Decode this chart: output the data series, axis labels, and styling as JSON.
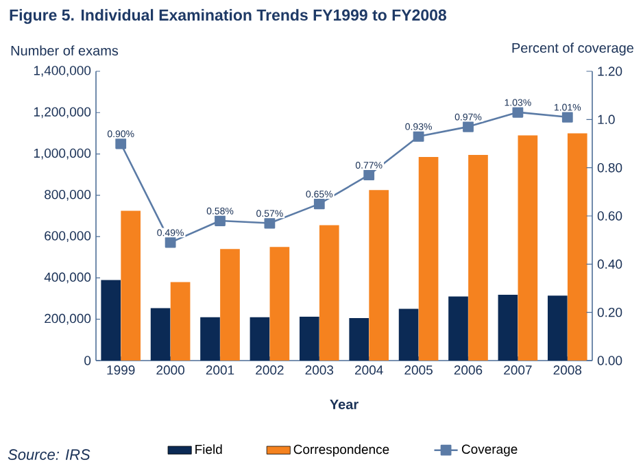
{
  "chart_data": {
    "type": "bar",
    "title": "Figure 5.     Individual Examination Trends FY1999 to FY2008",
    "xlabel": "Year",
    "ylabel": "Number of exams",
    "y2label": "Percent of coverage",
    "annotations": [
      "Source:  IRS"
    ],
    "categories": [
      "1999",
      "2000",
      "2001",
      "2002",
      "2003",
      "2004",
      "2005",
      "2006",
      "2007",
      "2008"
    ],
    "series": [
      {
        "name": "Field",
        "color": "#0b2a55",
        "values": [
          390000,
          254000,
          210000,
          210000,
          212000,
          206000,
          250000,
          310000,
          318000,
          314000
        ]
      },
      {
        "name": "Correspondence",
        "color": "#f5821f",
        "values": [
          725000,
          380000,
          540000,
          550000,
          655000,
          825000,
          985000,
          995000,
          1090000,
          1100000
        ]
      },
      {
        "name": "Coverage",
        "type": "line",
        "axis": "y2",
        "color": "#5b7ba6",
        "values": [
          0.9,
          0.49,
          0.58,
          0.57,
          0.65,
          0.77,
          0.93,
          0.97,
          1.03,
          1.01
        ],
        "value_labels": [
          "0.90%",
          "0.49%",
          "0.58%",
          "0.57%",
          "0.65%",
          "0.77%",
          "0.93%",
          "0.97%",
          "1.03%",
          "1.01%"
        ]
      }
    ],
    "ylim": [
      0,
      1400000
    ],
    "yticks": [
      {
        "value": 0,
        "label": "0"
      },
      {
        "value": 200000,
        "label": "200,000"
      },
      {
        "value": 400000,
        "label": "400,000"
      },
      {
        "value": 600000,
        "label": "600,000"
      },
      {
        "value": 800000,
        "label": "800,000"
      },
      {
        "value": 1000000,
        "label": "1,000,000"
      },
      {
        "value": 1200000,
        "label": "1,200,000"
      },
      {
        "value": 1400000,
        "label": "1,400,000"
      }
    ],
    "y2lim": [
      0,
      1.2
    ],
    "y2ticks": [
      {
        "value": 0,
        "label": "0.00"
      },
      {
        "value": 0.2,
        "label": "0.20"
      },
      {
        "value": 0.4,
        "label": "0.40"
      },
      {
        "value": 0.6,
        "label": "0.60"
      },
      {
        "value": 0.8,
        "label": "0.80"
      },
      {
        "value": 1.0,
        "label": "1.0"
      },
      {
        "value": 1.2,
        "label": "1.20"
      }
    ],
    "legend": "bottom",
    "marker": "square",
    "grid": false
  }
}
